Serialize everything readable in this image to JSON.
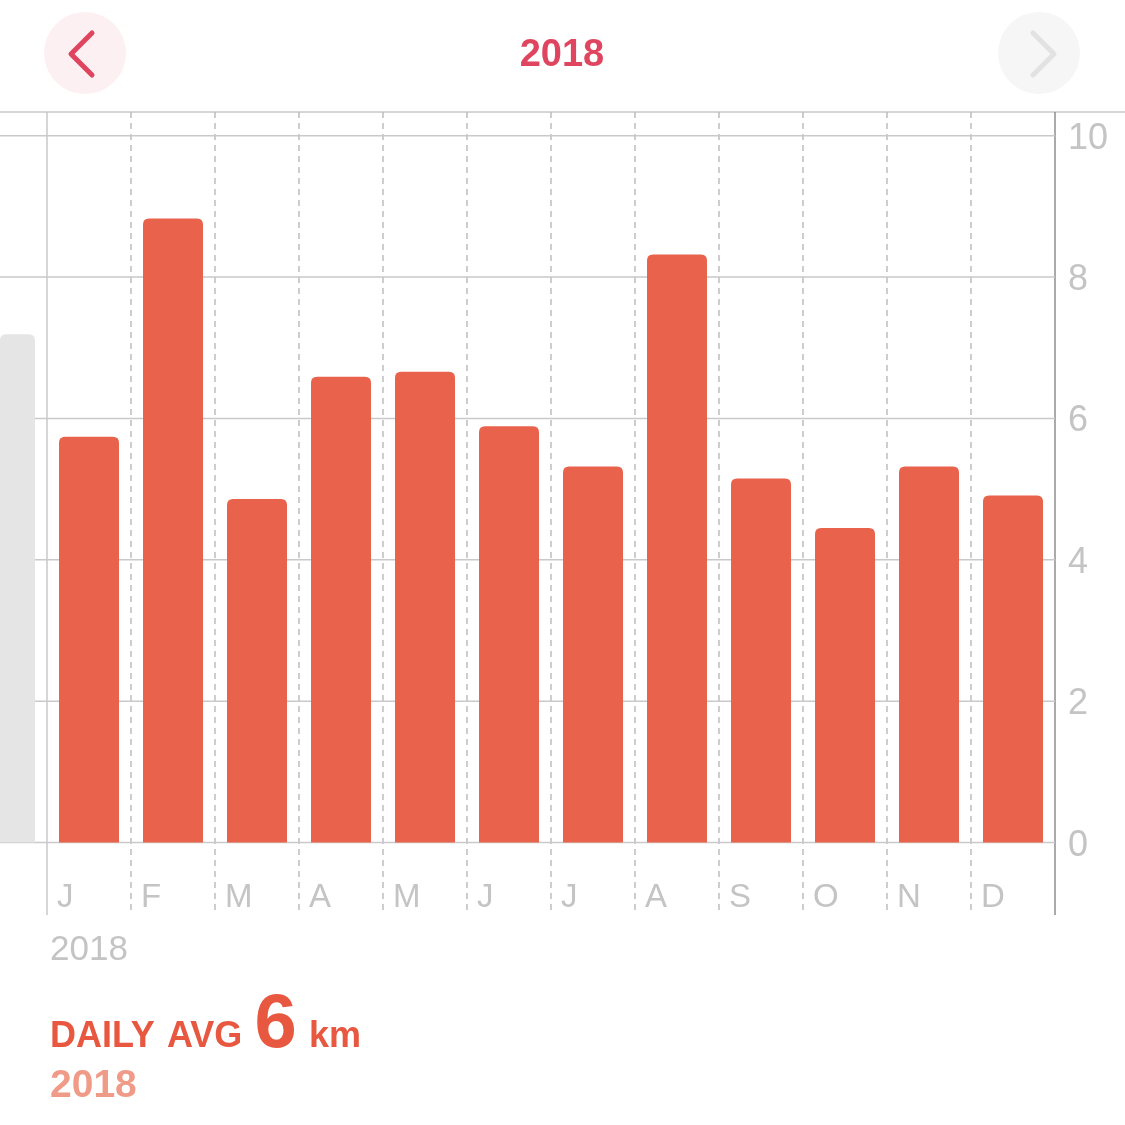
{
  "chart_data": {
    "type": "bar",
    "title": "2018",
    "xlabel": "2018",
    "categories": [
      null,
      "J",
      "F",
      "M",
      "A",
      "M",
      "J",
      "J",
      "A",
      "S",
      "O",
      "N",
      "D"
    ],
    "values": [
      7.19,
      5.74,
      8.83,
      4.86,
      6.59,
      6.66,
      5.89,
      5.32,
      8.32,
      5.15,
      4.45,
      5.32,
      4.91
    ],
    "colors": [
      "#e5e5e5",
      "#e9624b",
      "#e9624b",
      "#e9624b",
      "#e9624b",
      "#e9624b",
      "#e9624b",
      "#e9624b",
      "#e9624b",
      "#e9624b",
      "#e9624b",
      "#e9624b",
      "#e9624b"
    ],
    "ylim": [
      0,
      10
    ],
    "yticks": [
      0,
      2,
      4,
      6,
      8,
      10
    ],
    "grid": true,
    "annotations": [
      "DAILY AVG 6 km",
      "2018"
    ]
  }
}
